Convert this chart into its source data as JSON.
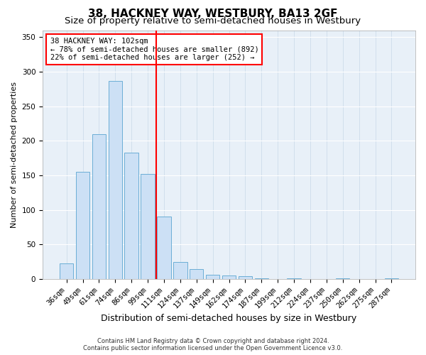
{
  "title": "38, HACKNEY WAY, WESTBURY, BA13 2GF",
  "subtitle": "Size of property relative to semi-detached houses in Westbury",
  "xlabel": "Distribution of semi-detached houses by size in Westbury",
  "ylabel": "Number of semi-detached properties",
  "categories": [
    "36sqm",
    "49sqm",
    "61sqm",
    "74sqm",
    "86sqm",
    "99sqm",
    "111sqm",
    "124sqm",
    "137sqm",
    "149sqm",
    "162sqm",
    "174sqm",
    "187sqm",
    "199sqm",
    "212sqm",
    "224sqm",
    "237sqm",
    "250sqm",
    "262sqm",
    "275sqm",
    "287sqm"
  ],
  "values": [
    23,
    155,
    210,
    287,
    183,
    152,
    91,
    25,
    14,
    6,
    5,
    4,
    1,
    0,
    1,
    0,
    0,
    1,
    0,
    0,
    1
  ],
  "bar_color": "#cce0f5",
  "bar_edge_color": "#6baed6",
  "vline_x": 5.5,
  "vline_color": "red",
  "annotation_title": "38 HACKNEY WAY: 102sqm",
  "annotation_line1": "← 78% of semi-detached houses are smaller (892)",
  "annotation_line2": "22% of semi-detached houses are larger (252) →",
  "footer1": "Contains HM Land Registry data © Crown copyright and database right 2024.",
  "footer2": "Contains public sector information licensed under the Open Government Licence v3.0.",
  "ylim": [
    0,
    360
  ],
  "yticks": [
    0,
    50,
    100,
    150,
    200,
    250,
    300,
    350
  ],
  "plot_background": "#e8f0f8",
  "title_fontsize": 11,
  "subtitle_fontsize": 9.5,
  "xlabel_fontsize": 9,
  "ylabel_fontsize": 8,
  "tick_fontsize": 7.5,
  "annotation_fontsize": 7.5,
  "footer_fontsize": 6
}
